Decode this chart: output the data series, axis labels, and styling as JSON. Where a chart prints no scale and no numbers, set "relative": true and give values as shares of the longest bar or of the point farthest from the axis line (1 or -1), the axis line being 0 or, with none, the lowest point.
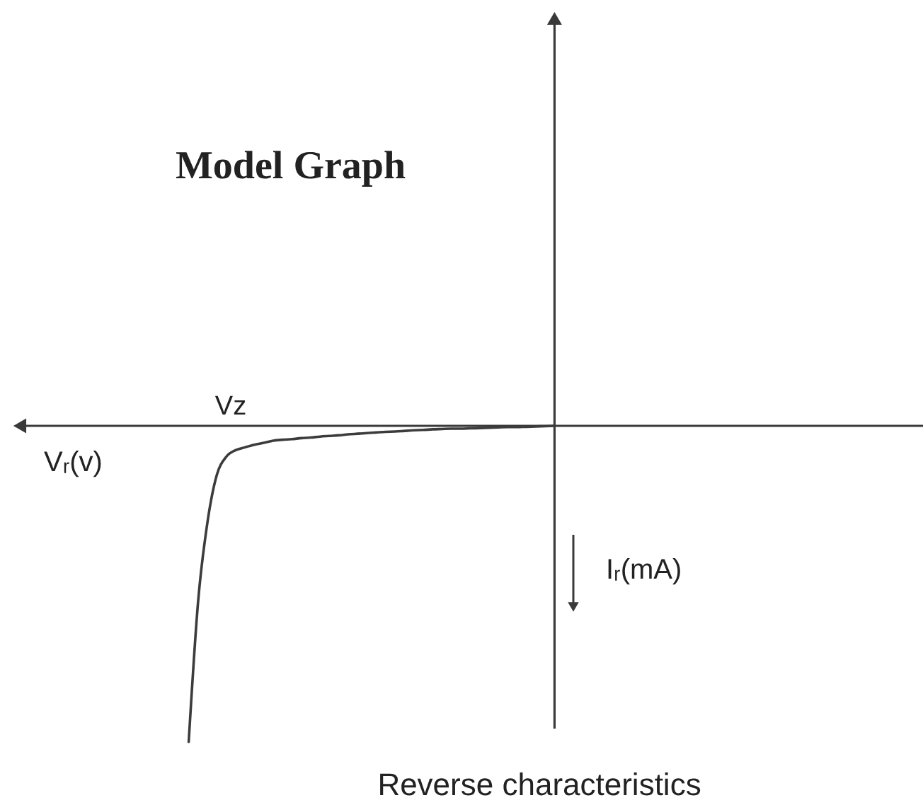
{
  "chart_data": {
    "type": "line",
    "title": "Model Graph",
    "xlabel": "Vᵣ(v)",
    "ylabel": "Iᵣ(mA)",
    "relative": true,
    "categories": [
      null,
      null,
      null,
      null,
      null,
      null,
      null,
      null,
      null,
      null,
      null,
      null,
      null,
      null,
      null,
      null,
      null,
      null,
      null,
      null,
      null,
      null,
      null,
      null,
      null,
      null,
      null,
      null,
      null,
      null,
      null,
      null,
      null,
      null,
      null,
      null,
      null,
      null,
      null,
      null
    ],
    "series": [
      {
        "color": "#3c3c3c",
        "values": [
          -1,
          -0.557,
          -0.305,
          -0.155,
          -0.098,
          -0.077,
          -0.068,
          -0.06,
          -0.054,
          -0.047,
          -0.044,
          -0.042,
          -0.039,
          -0.037,
          -0.034,
          -0.032,
          -0.03,
          -0.027,
          -0.025,
          -0.023,
          -0.021,
          -0.019,
          -0.018,
          -0.016,
          -0.014,
          -0.013,
          -0.011,
          -0.01,
          -0.009,
          -0.009,
          -0.008,
          -0.007,
          -0.006,
          -0.005,
          -0.004,
          -0.004,
          -0.003,
          -0.002,
          -0.001,
          0
        ]
      }
    ],
    "annotations": [
      "Vz",
      "Reverse characteristics"
    ]
  }
}
